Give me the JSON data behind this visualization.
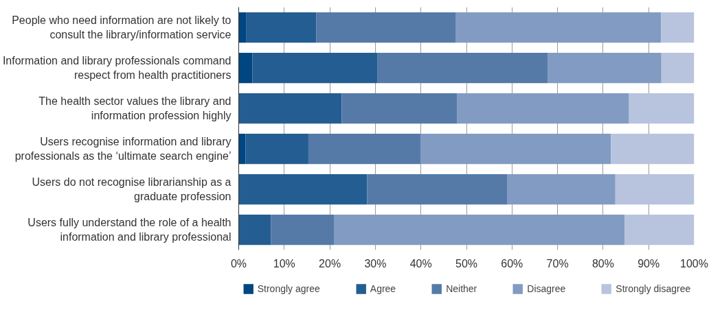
{
  "chart_data": {
    "type": "bar",
    "orientation": "horizontal",
    "stacked": true,
    "categories": [
      "People who need information are not likely to consult the library/information service",
      "Information and library professionals command respect from health practitioners",
      "The health sector values the library and information profession highly",
      "Users recognise information and library professionals as the ‘ultimate search engine’",
      "Users do not recognise librarianship as a graduate profession",
      "Users fully understand the role of a health information and library professional"
    ],
    "series": [
      {
        "name": "Strongly agree",
        "color": "#004680",
        "values": [
          1.6,
          3.0,
          0,
          1.5,
          0,
          0
        ]
      },
      {
        "name": "Agree",
        "color": "#245d91",
        "values": [
          15.4,
          27.5,
          22.6,
          13.8,
          28.2,
          7.1
        ]
      },
      {
        "name": "Neither",
        "color": "#557aa8",
        "values": [
          30.7,
          37.3,
          25.3,
          24.6,
          30.7,
          13.9
        ]
      },
      {
        "name": "Disagree",
        "color": "#829bc2",
        "values": [
          45.0,
          25.0,
          37.8,
          41.8,
          23.8,
          63.7
        ]
      },
      {
        "name": "Strongly disagree",
        "color": "#b8c4de",
        "values": [
          7.3,
          7.2,
          14.3,
          18.3,
          17.3,
          15.3
        ]
      }
    ],
    "xlim": [
      0,
      100
    ],
    "xticks": [
      {
        "value": 0,
        "label": "0%"
      },
      {
        "value": 10,
        "label": "10%"
      },
      {
        "value": 20,
        "label": "20%"
      },
      {
        "value": 30,
        "label": "30%"
      },
      {
        "value": 40,
        "label": "40%"
      },
      {
        "value": 50,
        "label": "50%"
      },
      {
        "value": 60,
        "label": "60%"
      },
      {
        "value": 70,
        "label": "70%"
      },
      {
        "value": 80,
        "label": "80%"
      },
      {
        "value": 90,
        "label": "90%"
      },
      {
        "value": 100,
        "label": "100%"
      }
    ],
    "grid": "x",
    "legend": "bottom"
  }
}
